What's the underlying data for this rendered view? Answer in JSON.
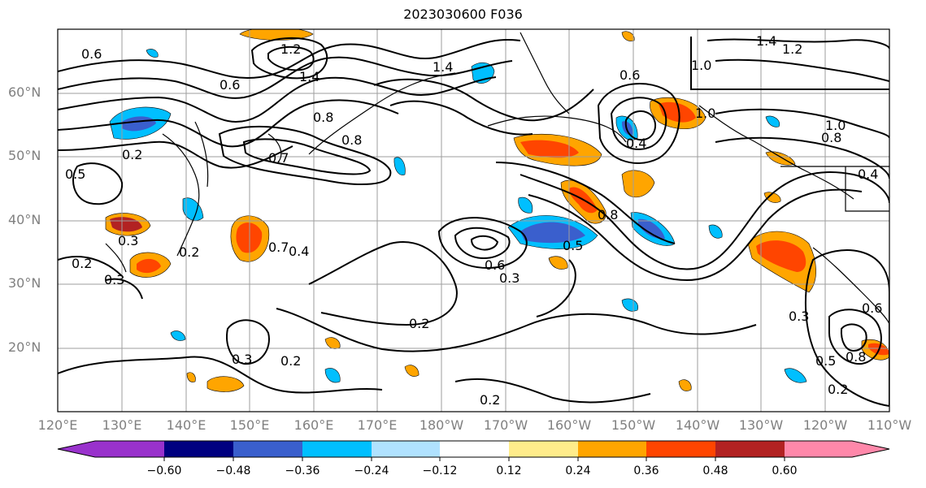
{
  "title": "2023030600 F036",
  "map": {
    "lat_labels": [
      "60°N",
      "50°N",
      "40°N",
      "30°N",
      "20°N"
    ],
    "lon_labels": [
      "120°E",
      "130°E",
      "140°E",
      "150°E",
      "160°E",
      "170°E",
      "180°W",
      "170°W",
      "160°W",
      "150°W",
      "140°W",
      "130°W",
      "120°W",
      "110°W"
    ],
    "contour_labels": [
      "0.6",
      "1.2",
      "1.4",
      "1.4",
      "1.4",
      "1.2",
      "1.0",
      "1.0",
      "0.6",
      "0.8",
      "0.4",
      "0.6",
      "0.2",
      "0.5",
      "0.7",
      "0.8",
      "0.3",
      "0.2",
      "0.2",
      "0.3",
      "0.7",
      "0.4",
      "0.6",
      "0.5",
      "0.8",
      "0.3",
      "0.2",
      "0.3",
      "0.2",
      "0.2",
      "0.3",
      "0.5",
      "0.8",
      "0.2",
      "0.6",
      "1.0",
      "0.8",
      "0.4"
    ]
  },
  "colorbar": {
    "tick_labels": [
      "−0.60",
      "−0.48",
      "−0.36",
      "−0.24",
      "−0.12",
      "0.12",
      "0.24",
      "0.36",
      "0.48",
      "0.60"
    ],
    "colors": [
      "#9932cc",
      "#000080",
      "#3a5fcd",
      "#00bfff",
      "#b0e2ff",
      "#ffffff",
      "#ffec8b",
      "#ffa500",
      "#ff4500",
      "#b22222",
      "#ff88aa"
    ]
  }
}
